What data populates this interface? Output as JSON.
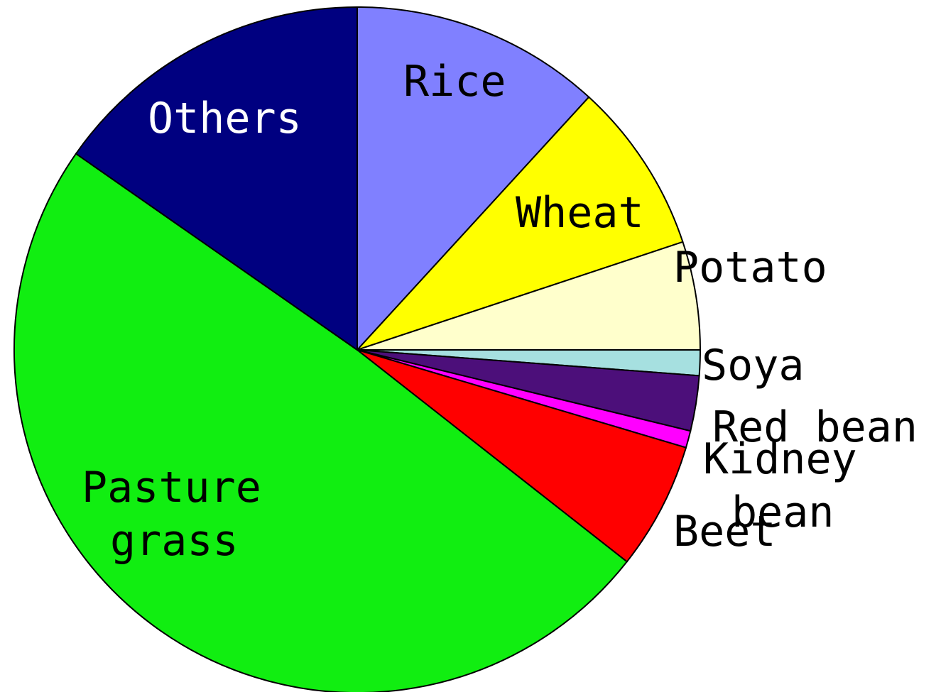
{
  "chart_data": {
    "type": "pie",
    "categories": [
      "Rice",
      "Wheat",
      "Potato",
      "Soya",
      "Red bean",
      "Kidney bean",
      "Beet",
      "Pasture grass",
      "Others"
    ],
    "values": [
      11.8,
      8.1,
      5.1,
      1.2,
      2.6,
      0.8,
      6.0,
      49.1,
      15.3
    ],
    "colors": [
      "#8080ff",
      "#ffff00",
      "#ffffcc",
      "#a6e0e0",
      "#4c0f7a",
      "#ff00ff",
      "#ff0000",
      "#11ee11",
      "#000080"
    ]
  }
}
